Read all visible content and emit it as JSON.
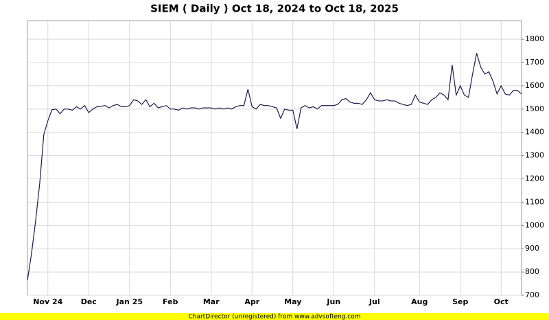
{
  "chart_data": {
    "type": "line",
    "title": "SIEM ( Daily ) Oct 18, 2024 to Oct 18, 2025",
    "footer": "ChartDirector (unregistered) from www.advsofteng.com",
    "categories": [
      null,
      null,
      null,
      null,
      null,
      "Nov 24",
      null,
      null,
      null,
      null,
      null,
      null,
      null,
      null,
      null,
      "Dec",
      null,
      null,
      null,
      null,
      null,
      null,
      null,
      null,
      null,
      "Jan 25",
      null,
      null,
      null,
      null,
      null,
      null,
      null,
      null,
      null,
      "Feb",
      null,
      null,
      null,
      null,
      null,
      null,
      null,
      null,
      null,
      "Mar",
      null,
      null,
      null,
      null,
      null,
      null,
      null,
      null,
      null,
      "Apr",
      null,
      null,
      null,
      null,
      null,
      null,
      null,
      null,
      null,
      "May",
      null,
      null,
      null,
      null,
      null,
      null,
      null,
      null,
      null,
      "Jun",
      null,
      null,
      null,
      null,
      null,
      null,
      null,
      null,
      null,
      "Jul",
      null,
      null,
      null,
      null,
      null,
      null,
      null,
      null,
      null,
      null,
      "Aug",
      null,
      null,
      null,
      null,
      null,
      null,
      null,
      null,
      null,
      "Sep",
      null,
      null,
      null,
      null,
      null,
      null,
      null,
      null,
      null,
      "Oct",
      null,
      null,
      null,
      null,
      null
    ],
    "series": [
      {
        "name": "SIEM",
        "color": "#1a1a4e",
        "values": [
          765,
          880,
          1020,
          1180,
          1390,
          1450,
          1497,
          1500,
          1480,
          1500,
          1500,
          1495,
          1510,
          1500,
          1515,
          1485,
          1500,
          1510,
          1512,
          1515,
          1505,
          1515,
          1520,
          1510,
          1510,
          1515,
          1540,
          1535,
          1520,
          1540,
          1510,
          1525,
          1505,
          1510,
          1515,
          1500,
          1500,
          1495,
          1505,
          1500,
          1505,
          1505,
          1500,
          1505,
          1505,
          1505,
          1500,
          1505,
          1500,
          1505,
          1500,
          1510,
          1515,
          1515,
          1585,
          1510,
          1500,
          1520,
          1515,
          1515,
          1510,
          1505,
          1460,
          1500,
          1495,
          1495,
          1415,
          1505,
          1515,
          1505,
          1510,
          1500,
          1515,
          1515,
          1515,
          1515,
          1520,
          1540,
          1545,
          1530,
          1525,
          1525,
          1520,
          1540,
          1570,
          1540,
          1535,
          1535,
          1540,
          1535,
          1535,
          1525,
          1520,
          1515,
          1520,
          1560,
          1530,
          1525,
          1520,
          1540,
          1550,
          1570,
          1560,
          1540,
          1690,
          1560,
          1600,
          1560,
          1550,
          1650,
          1740,
          1680,
          1650,
          1660,
          1620,
          1565,
          1600,
          1565,
          1560,
          1580,
          1580,
          1565
        ]
      }
    ],
    "ylim": [
      700,
      1880
    ],
    "yticks": [
      700,
      800,
      900,
      1000,
      1100,
      1200,
      1300,
      1400,
      1500,
      1600,
      1700,
      1800
    ],
    "grid": true
  }
}
